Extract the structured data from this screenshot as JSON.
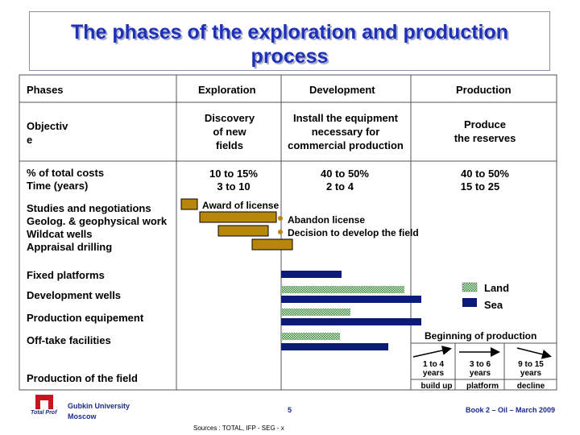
{
  "title": "The phases of the exploration and production process",
  "headers": {
    "phases": "Phases",
    "exploration": "Exploration",
    "development": "Development",
    "production": "Production"
  },
  "objective": {
    "label": "Objectiv\ne",
    "exploration": "Discovery\nof new\nfields",
    "development": "Install the equipment\nnecessary for\ncommercial production",
    "production": "Produce\nthe reserves"
  },
  "costs": {
    "label": "% of total costs",
    "exploration": "10 to 15%",
    "development": "40 to 50%",
    "production": "40 to 50%"
  },
  "time": {
    "label": "Time (years)",
    "exploration": "3 to 10",
    "development": "2 to 4",
    "production": "15 to 25"
  },
  "activities": {
    "studies": "Studies and negotiations",
    "geolog": "Geolog. & geophysical work",
    "wildcat": "Wildcat wells",
    "appraisal": "Appraisal drilling",
    "fixed_platforms": "Fixed platforms",
    "dev_wells": "Development wells",
    "prod_equipment": "Production equipement",
    "offtake": "Off-take facilities",
    "prod_field": "Production of the field"
  },
  "notes": {
    "award": "Award of license",
    "abandon": "Abandon license",
    "decision": "Decision to develop the field",
    "beginning": "Beginning of production"
  },
  "legend": {
    "land": "Land",
    "sea": "Sea"
  },
  "production_phases": [
    {
      "years": "1 to 4\nyears",
      "label": "build up"
    },
    {
      "years": "3 to 6\nyears",
      "label": "platform"
    },
    {
      "years": "9 to 15\nyears",
      "label": "decline"
    }
  ],
  "footer": {
    "university": "Gubkin University\nMoscow",
    "page": "5",
    "book": "Book 2 – Oil – March 2009",
    "sources": "Sources : TOTAL, IFP - SEG - x",
    "logo_text": "Total Prof"
  },
  "colors": {
    "title": "#1e2fb8",
    "gold": "#b8860b",
    "navy": "#0c1a78",
    "land": "#5a9a5a"
  }
}
